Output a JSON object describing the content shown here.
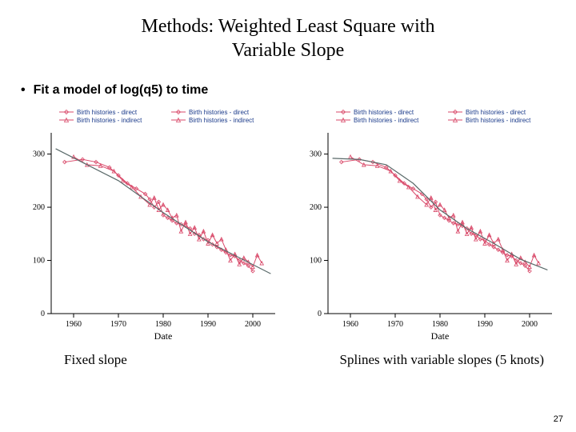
{
  "title_line1": "Methods: Weighted Least Square with",
  "title_line2": "Variable Slope",
  "bullet_text": "Fit a model of log(q5) to time",
  "page_number": "27",
  "caption_left": "Fixed slope",
  "caption_right": "Splines with variable slopes (5 knots)",
  "chart_common": {
    "x_axis_label": "Date",
    "x_ticks": [
      1960,
      1970,
      1980,
      1990,
      2000
    ],
    "x_min": 1955,
    "x_max": 2005,
    "y_ticks": [
      0,
      100,
      200,
      300
    ],
    "y_min": 0,
    "y_max": 340,
    "background_color": "#ffffff",
    "axis_color": "#000000",
    "tick_fontsize": 10,
    "axis_title_fontsize": 12,
    "legend": {
      "items": [
        {
          "label": "Birth histories - direct",
          "color": "#d94a6a",
          "marker": "diamond"
        },
        {
          "label": "Birth histories - indirect",
          "color": "#d94a6a",
          "marker": "triangle"
        },
        {
          "label": "Birth histories - direct",
          "color": "#d94a6a",
          "marker": "diamond"
        },
        {
          "label": "Birth histories - indirect",
          "color": "#d94a6a",
          "marker": "triangle"
        }
      ],
      "text_color": "#1a3a8a",
      "fontsize": 8
    },
    "series": {
      "direct": {
        "color": "#d94a6a",
        "marker": "diamond",
        "points": [
          [
            1958,
            285
          ],
          [
            1962,
            290
          ],
          [
            1965,
            285
          ],
          [
            1968,
            275
          ],
          [
            1970,
            260
          ],
          [
            1972,
            245
          ],
          [
            1974,
            235
          ],
          [
            1976,
            225
          ],
          [
            1977,
            215
          ],
          [
            1978,
            200
          ],
          [
            1979,
            210
          ],
          [
            1980,
            185
          ],
          [
            1981,
            180
          ],
          [
            1982,
            175
          ],
          [
            1983,
            170
          ],
          [
            1984,
            168
          ],
          [
            1985,
            165
          ],
          [
            1986,
            160
          ],
          [
            1987,
            150
          ],
          [
            1988,
            148
          ],
          [
            1989,
            140
          ],
          [
            1990,
            138
          ],
          [
            1991,
            130
          ],
          [
            1992,
            125
          ],
          [
            1993,
            120
          ],
          [
            1994,
            115
          ],
          [
            1995,
            110
          ],
          [
            1996,
            108
          ],
          [
            1997,
            100
          ],
          [
            1998,
            95
          ],
          [
            1999,
            90
          ],
          [
            2000,
            80
          ]
        ]
      },
      "indirect": {
        "color": "#d94a6a",
        "marker": "triangle",
        "points": [
          [
            1960,
            295
          ],
          [
            1963,
            280
          ],
          [
            1966,
            278
          ],
          [
            1969,
            268
          ],
          [
            1971,
            250
          ],
          [
            1973,
            238
          ],
          [
            1975,
            220
          ],
          [
            1977,
            205
          ],
          [
            1978,
            218
          ],
          [
            1979,
            195
          ],
          [
            1980,
            205
          ],
          [
            1981,
            195
          ],
          [
            1982,
            180
          ],
          [
            1983,
            185
          ],
          [
            1984,
            155
          ],
          [
            1985,
            172
          ],
          [
            1986,
            150
          ],
          [
            1987,
            162
          ],
          [
            1988,
            140
          ],
          [
            1989,
            155
          ],
          [
            1990,
            132
          ],
          [
            1991,
            148
          ],
          [
            1992,
            132
          ],
          [
            1993,
            140
          ],
          [
            1994,
            120
          ],
          [
            1995,
            100
          ],
          [
            1996,
            112
          ],
          [
            1997,
            93
          ],
          [
            1998,
            105
          ],
          [
            1999,
            97
          ],
          [
            2000,
            88
          ],
          [
            2001,
            110
          ],
          [
            2002,
            95
          ]
        ]
      }
    },
    "series_line_width": 1,
    "fit_line_color": "#5a6a6a",
    "fit_line_width": 1.2
  },
  "left_chart": {
    "fit_line": [
      [
        1956,
        310
      ],
      [
        1970,
        250
      ],
      [
        1980,
        190
      ],
      [
        1990,
        135
      ],
      [
        2004,
        75
      ]
    ]
  },
  "right_chart": {
    "fit_line": [
      [
        1956,
        292
      ],
      [
        1962,
        290
      ],
      [
        1968,
        280
      ],
      [
        1974,
        245
      ],
      [
        1980,
        195
      ],
      [
        1986,
        160
      ],
      [
        1992,
        132
      ],
      [
        1998,
        102
      ],
      [
        2004,
        82
      ]
    ]
  }
}
